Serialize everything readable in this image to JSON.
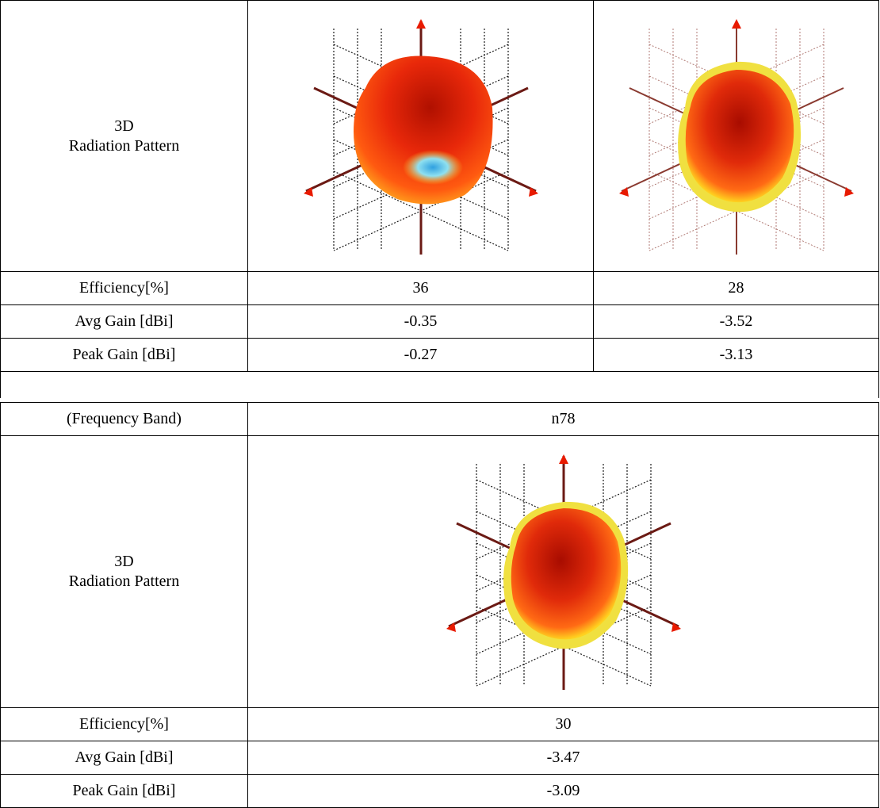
{
  "table1": {
    "pattern_label_line1": "3D",
    "pattern_label_line2": "Radiation Pattern",
    "rows": [
      {
        "label": "Efficiency[%]",
        "col1": "36",
        "col2": "28"
      },
      {
        "label": "Avg Gain [dBi]",
        "col1": "-0.35",
        "col2": "-3.52"
      },
      {
        "label": "Peak Gain [dBi]",
        "col1": "-0.27",
        "col2": "-3.13"
      }
    ]
  },
  "table2": {
    "band_label": "(Frequency Band)",
    "band_value": "n78",
    "pattern_label_line1": "3D",
    "pattern_label_line2": "Radiation Pattern",
    "rows": [
      {
        "label": "Efficiency[%]",
        "value": "30"
      },
      {
        "label": "Avg Gain [dBi]",
        "value": "-3.47"
      },
      {
        "label": "Peak Gain [dBi]",
        "value": "-3.09"
      }
    ]
  },
  "colors": {
    "pattern_hot": "#d21a00",
    "pattern_mid": "#ff4a10",
    "pattern_edge": "#ffd21f",
    "pattern_cool": "#6fd0f5",
    "axis": "#6b1a14",
    "grid": "#1a1a1a"
  }
}
